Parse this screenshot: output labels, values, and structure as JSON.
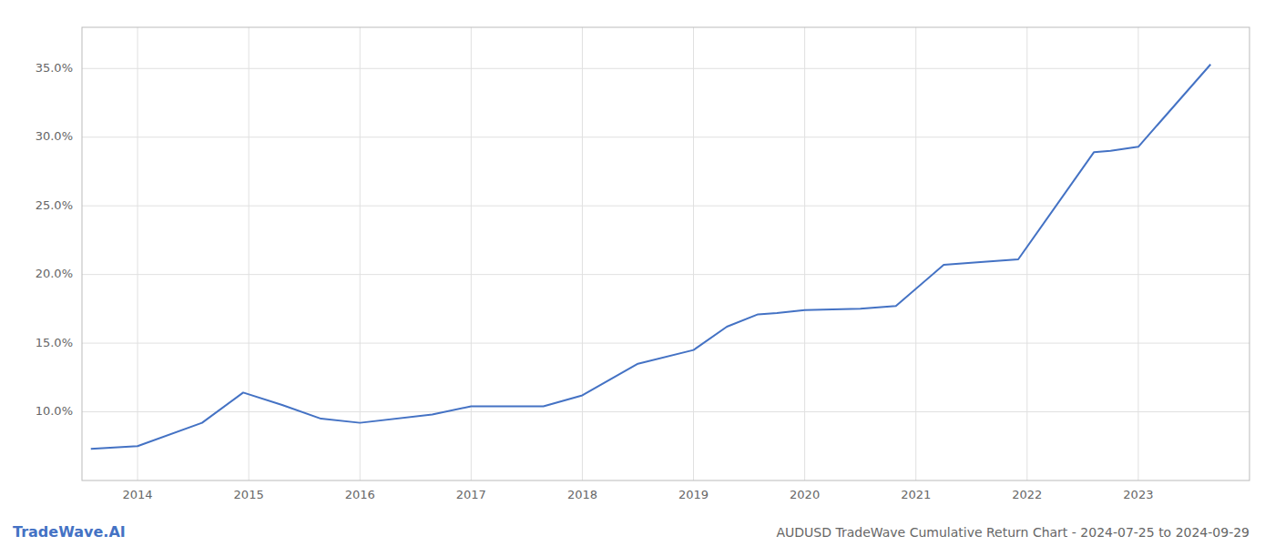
{
  "chart_data": {
    "type": "line",
    "title": "AUDUSD TradeWave Cumulative Return Chart - 2024-07-25 to 2024-09-29",
    "annotations": [
      "TradeWave.AI"
    ],
    "x": [
      2013.58,
      2014.0,
      2014.58,
      2014.95,
      2015.3,
      2015.65,
      2016.0,
      2016.65,
      2017.0,
      2017.65,
      2018.0,
      2018.5,
      2019.0,
      2019.3,
      2019.58,
      2019.75,
      2020.0,
      2020.5,
      2020.82,
      2021.25,
      2021.58,
      2021.92,
      2022.6,
      2022.75,
      2023.0,
      2023.65
    ],
    "values": [
      7.3,
      7.5,
      9.2,
      11.4,
      10.5,
      9.5,
      9.2,
      9.8,
      10.4,
      10.4,
      11.2,
      13.5,
      14.5,
      16.2,
      17.1,
      17.2,
      17.4,
      17.5,
      17.7,
      20.7,
      20.9,
      21.1,
      28.9,
      29.0,
      29.3,
      35.3
    ],
    "color": "#4472c4",
    "xlim": [
      2013.5,
      2024.0
    ],
    "ylim": [
      5,
      38
    ],
    "xticks": [
      2014,
      2015,
      2016,
      2017,
      2018,
      2019,
      2020,
      2021,
      2022,
      2023
    ],
    "yticks": [
      {
        "value": 10.0,
        "label": "10.0%"
      },
      {
        "value": 15.0,
        "label": "15.0%"
      },
      {
        "value": 20.0,
        "label": "20.0%"
      },
      {
        "value": 25.0,
        "label": "25.0%"
      },
      {
        "value": 30.0,
        "label": "30.0%"
      },
      {
        "value": 35.0,
        "label": "35.0%"
      }
    ],
    "grid": true
  }
}
